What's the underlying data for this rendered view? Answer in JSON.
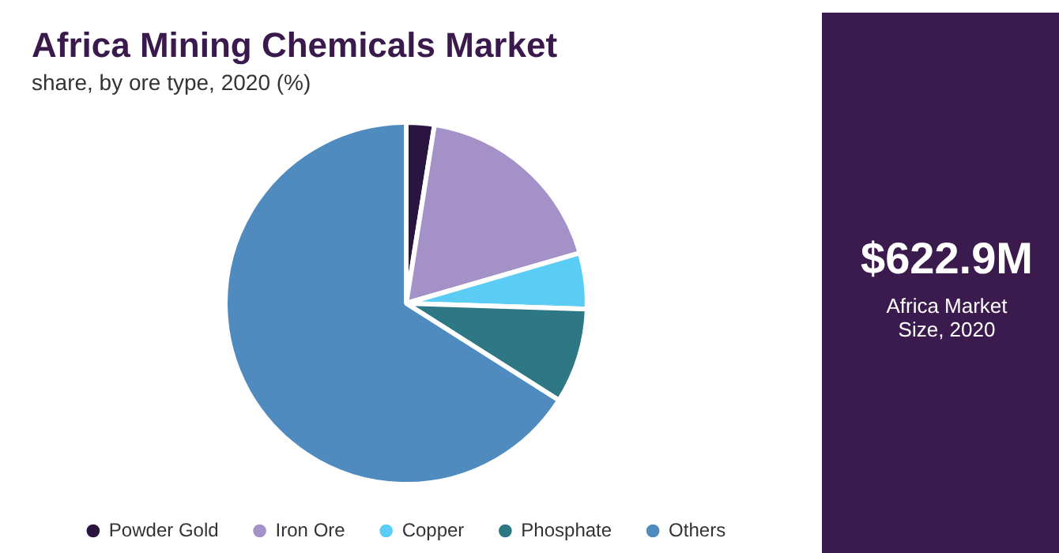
{
  "chart_data": {
    "type": "pie",
    "title": "Africa Mining Chemicals Market",
    "subtitle": "share, by ore type, 2020 (%)",
    "categories": [
      "Powder Gold",
      "Iron Ore",
      "Copper",
      "Phosphate",
      "Others"
    ],
    "values": [
      2.5,
      18,
      5,
      8.5,
      66
    ],
    "colors": [
      "#2a1540",
      "#a491c8",
      "#5bcdf5",
      "#2e7785",
      "#4f8bbf"
    ],
    "legend": "bottom",
    "annotations": [
      "$622.9M",
      "Africa Market Size, 2020"
    ]
  }
}
